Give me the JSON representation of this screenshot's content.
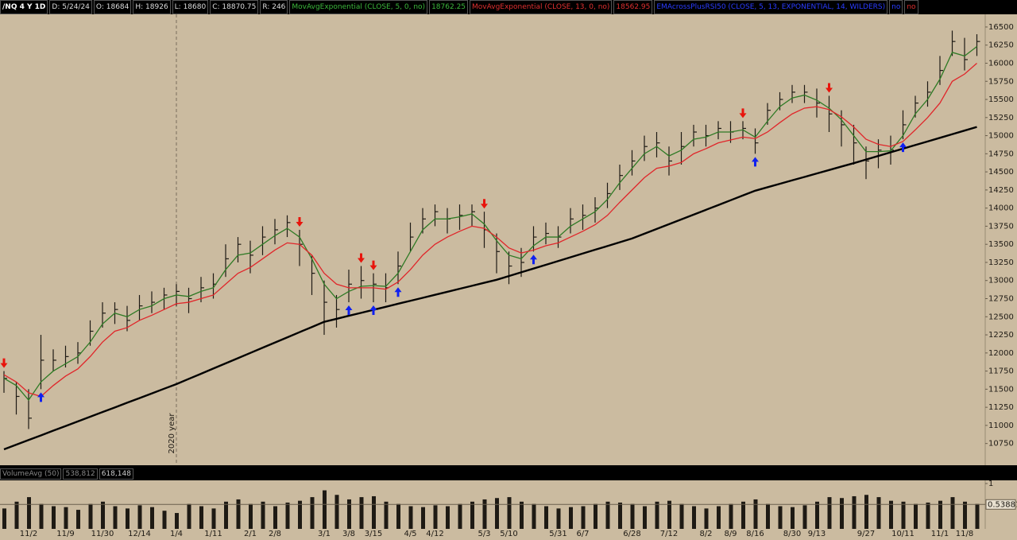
{
  "header": {
    "symbol": "/NQ 4 Y 1D",
    "fields": [
      "D: 5/24/24",
      "O: 18684",
      "H: 18926",
      "L: 18680",
      "C: 18870.75",
      "R: 246"
    ],
    "study": "EMAcrossPlusRSI50 (CLOSE, 5, 13, EXPONENTIAL, 14, WILDERS)",
    "flags": [
      "no",
      "no"
    ]
  },
  "chart_data": {
    "type": "ohlc",
    "color": "#1e1a14",
    "categories": [
      null,
      null,
      "11/2",
      null,
      null,
      "11/9",
      null,
      null,
      "11/30",
      null,
      null,
      "12/14",
      null,
      null,
      "1/4",
      null,
      null,
      "1/11",
      null,
      null,
      "2/1",
      null,
      "2/8",
      null,
      null,
      null,
      "3/1",
      null,
      "3/8",
      null,
      "3/15",
      null,
      null,
      "4/5",
      null,
      "4/12",
      null,
      null,
      null,
      "5/3",
      null,
      "5/10",
      null,
      null,
      null,
      "5/31",
      null,
      "6/7",
      null,
      null,
      null,
      "6/28",
      null,
      null,
      "7/12",
      null,
      null,
      "8/2",
      null,
      "8/9",
      null,
      "8/16",
      null,
      null,
      "8/30",
      null,
      "9/13",
      null,
      null,
      null,
      "9/27",
      null,
      null,
      "10/11",
      null,
      null,
      "11/1",
      null,
      "11/8",
      null
    ],
    "high": [
      11750,
      11600,
      11500,
      12250,
      12050,
      12100,
      12150,
      12450,
      12700,
      12700,
      12650,
      12800,
      12850,
      12900,
      12950,
      12900,
      13050,
      13100,
      13500,
      13600,
      13550,
      13750,
      13850,
      13900,
      13700,
      13350,
      13000,
      12800,
      13150,
      13200,
      13100,
      13100,
      13400,
      13800,
      14000,
      14050,
      14000,
      14050,
      14050,
      13950,
      13650,
      13400,
      13450,
      13750,
      13800,
      13750,
      14000,
      14050,
      14150,
      14350,
      14600,
      14800,
      15000,
      15050,
      14850,
      15050,
      15150,
      15150,
      15200,
      15200,
      15200,
      15100,
      15450,
      15600,
      15700,
      15700,
      15650,
      15550,
      15350,
      15150,
      14850,
      14950,
      15000,
      15350,
      15550,
      15750,
      16100,
      16450,
      16350,
      16400
    ],
    "low": [
      11450,
      11150,
      10950,
      11500,
      11750,
      11800,
      11850,
      12100,
      12350,
      12400,
      12300,
      12450,
      12550,
      12600,
      12650,
      12550,
      12700,
      12750,
      13050,
      13250,
      13100,
      13350,
      13500,
      13600,
      13200,
      12800,
      12250,
      12350,
      12700,
      12750,
      12700,
      12700,
      12950,
      13400,
      13650,
      13750,
      13650,
      13700,
      13750,
      13450,
      13100,
      12950,
      13050,
      13400,
      13500,
      13450,
      13650,
      13700,
      13800,
      14000,
      14250,
      14450,
      14650,
      14700,
      14450,
      14600,
      14850,
      14850,
      14950,
      14900,
      14950,
      14750,
      15150,
      15350,
      15450,
      15450,
      15250,
      15050,
      14850,
      14600,
      14400,
      14550,
      14600,
      14950,
      15250,
      15400,
      15700,
      16100,
      15900,
      16100
    ],
    "close": [
      11650,
      11400,
      11100,
      11900,
      11900,
      11950,
      12000,
      12300,
      12550,
      12600,
      12450,
      12650,
      12700,
      12800,
      12850,
      12750,
      12900,
      12950,
      13300,
      13500,
      13350,
      13600,
      13700,
      13800,
      13500,
      13100,
      12700,
      12600,
      12950,
      13000,
      12950,
      12900,
      13200,
      13600,
      13850,
      13950,
      13850,
      13900,
      13950,
      13700,
      13400,
      13200,
      13250,
      13600,
      13650,
      13600,
      13850,
      13900,
      14000,
      14200,
      14450,
      14650,
      14850,
      14900,
      14650,
      14850,
      15050,
      15000,
      15100,
      15050,
      15100,
      14900,
      15350,
      15500,
      15600,
      15600,
      15450,
      15300,
      15150,
      14900,
      14650,
      14800,
      14800,
      15150,
      15450,
      15600,
      15900,
      16300,
      16050,
      16300
    ],
    "series": [
      {
        "name": "MovAvgExponential (CLOSE, 5, 0, no)",
        "last": 18762.25,
        "color": "#2f7a25",
        "values": [
          11650,
          11550,
          11350,
          11600,
          11750,
          11850,
          11950,
          12150,
          12400,
          12550,
          12500,
          12600,
          12650,
          12750,
          12800,
          12780,
          12850,
          12900,
          13150,
          13350,
          13380,
          13500,
          13620,
          13720,
          13600,
          13300,
          12950,
          12750,
          12850,
          12920,
          12930,
          12920,
          13100,
          13400,
          13700,
          13850,
          13850,
          13880,
          13920,
          13780,
          13550,
          13350,
          13300,
          13480,
          13600,
          13600,
          13750,
          13850,
          13950,
          14120,
          14350,
          14550,
          14750,
          14850,
          14720,
          14800,
          14950,
          14980,
          15050,
          15050,
          15080,
          14980,
          15200,
          15400,
          15520,
          15560,
          15490,
          15380,
          15220,
          15000,
          14780,
          14780,
          14790,
          15000,
          15300,
          15500,
          15780,
          16150,
          16100,
          16230
        ]
      },
      {
        "name": "MovAvgExponential (CLOSE, 13, 0, no)",
        "last": 18562.95,
        "color": "#e0262a",
        "values": [
          11700,
          11600,
          11450,
          11400,
          11550,
          11680,
          11780,
          11950,
          12150,
          12300,
          12350,
          12450,
          12520,
          12600,
          12680,
          12700,
          12750,
          12800,
          12950,
          13100,
          13180,
          13300,
          13420,
          13520,
          13500,
          13350,
          13100,
          12950,
          12900,
          12900,
          12900,
          12880,
          12980,
          13150,
          13350,
          13500,
          13600,
          13680,
          13750,
          13720,
          13600,
          13450,
          13380,
          13420,
          13480,
          13520,
          13600,
          13680,
          13770,
          13900,
          14080,
          14250,
          14420,
          14550,
          14580,
          14630,
          14750,
          14820,
          14900,
          14940,
          14980,
          14960,
          15050,
          15180,
          15300,
          15380,
          15400,
          15360,
          15260,
          15120,
          14950,
          14880,
          14850,
          14920,
          15080,
          15250,
          15450,
          15750,
          15850,
          16000
        ]
      },
      {
        "color": "#000000",
        "values": [
          10670,
          10734,
          10798,
          10862,
          10927,
          10991,
          11055,
          11120,
          11184,
          11248,
          11313,
          11377,
          11441,
          11506,
          11570,
          11642,
          11713,
          11785,
          11857,
          11928,
          12000,
          12072,
          12143,
          12215,
          12287,
          12358,
          12430,
          12471,
          12513,
          12554,
          12596,
          12637,
          12679,
          12720,
          12761,
          12803,
          12844,
          12886,
          12927,
          12969,
          13010,
          13062,
          13114,
          13165,
          13217,
          13269,
          13321,
          13373,
          13425,
          13476,
          13528,
          13580,
          13646,
          13712,
          13778,
          13844,
          13910,
          13976,
          14042,
          14108,
          14174,
          14240,
          14288,
          14335,
          14383,
          14430,
          14478,
          14525,
          14573,
          14620,
          14670,
          14720,
          14770,
          14820,
          14870,
          14920,
          14970,
          15020,
          15070,
          15120
        ]
      }
    ],
    "signals": {
      "down": [
        0,
        24,
        29,
        30,
        39,
        60,
        67
      ],
      "up": [
        3,
        28,
        30,
        32,
        43,
        61,
        73
      ],
      "down_color": "#e8140c",
      "up_color": "#1020f0"
    },
    "annotations": [
      {
        "text": "2020 year",
        "index": 14
      }
    ],
    "ylim": [
      10450,
      16675
    ],
    "yticks": [
      10750,
      11000,
      11250,
      11500,
      11750,
      12000,
      12250,
      12500,
      12750,
      13000,
      13250,
      13500,
      13750,
      14000,
      14250,
      14500,
      14750,
      15000,
      15250,
      15500,
      15750,
      16000,
      16250,
      16500
    ],
    "volume": {
      "title": "VolumeAvg (50)",
      "readouts": [
        "538,812",
        "618,148"
      ],
      "color": "#1e1a14",
      "ylim": [
        0,
        1
      ],
      "yticks": [
        1
      ],
      "avg": 0.53881,
      "values": [
        0.45,
        0.6,
        0.7,
        0.55,
        0.5,
        0.48,
        0.42,
        0.55,
        0.6,
        0.5,
        0.45,
        0.52,
        0.48,
        0.4,
        0.35,
        0.55,
        0.5,
        0.45,
        0.6,
        0.65,
        0.55,
        0.6,
        0.5,
        0.58,
        0.62,
        0.7,
        0.85,
        0.75,
        0.65,
        0.7,
        0.72,
        0.6,
        0.55,
        0.5,
        0.48,
        0.52,
        0.5,
        0.55,
        0.6,
        0.65,
        0.68,
        0.7,
        0.6,
        0.55,
        0.5,
        0.45,
        0.48,
        0.5,
        0.55,
        0.6,
        0.58,
        0.55,
        0.5,
        0.6,
        0.62,
        0.55,
        0.5,
        0.45,
        0.5,
        0.55,
        0.6,
        0.65,
        0.55,
        0.5,
        0.48,
        0.52,
        0.6,
        0.7,
        0.68,
        0.72,
        0.75,
        0.7,
        0.62,
        0.6,
        0.55,
        0.58,
        0.62,
        0.7,
        0.6,
        0.55
      ]
    }
  }
}
